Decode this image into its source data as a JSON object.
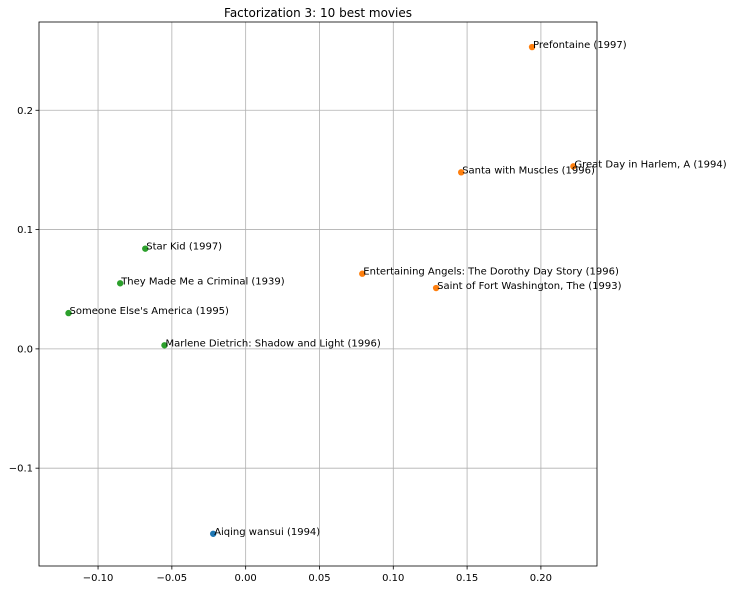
{
  "chart_data": {
    "type": "scatter",
    "title": "Factorization 3: 10 best movies",
    "xlabel": "",
    "ylabel": "",
    "xlim": [
      -0.14,
      0.238
    ],
    "ylim": [
      -0.182,
      0.274
    ],
    "grid": true,
    "x_ticks": [
      {
        "value": -0.1,
        "label": "−0.10"
      },
      {
        "value": -0.05,
        "label": "−0.05"
      },
      {
        "value": 0.0,
        "label": "0.00"
      },
      {
        "value": 0.05,
        "label": "0.05"
      },
      {
        "value": 0.1,
        "label": "0.10"
      },
      {
        "value": 0.15,
        "label": "0.15"
      },
      {
        "value": 0.2,
        "label": "0.20"
      }
    ],
    "y_ticks": [
      {
        "value": -0.1,
        "label": "−0.1"
      },
      {
        "value": 0.0,
        "label": "0.0"
      },
      {
        "value": 0.1,
        "label": "0.1"
      },
      {
        "value": 0.2,
        "label": "0.2"
      }
    ],
    "colors": {
      "blue": "#1f77b4",
      "orange": "#ff7f0e",
      "green": "#2ca02c"
    },
    "points": [
      {
        "label": "Prefontaine (1997)",
        "x": 0.194,
        "y": 0.253,
        "color": "orange"
      },
      {
        "label": "Great Day in Harlem, A (1994)",
        "x": 0.222,
        "y": 0.153,
        "color": "orange"
      },
      {
        "label": "Santa with Muscles (1996)",
        "x": 0.146,
        "y": 0.148,
        "color": "orange"
      },
      {
        "label": "Entertaining Angels: The Dorothy Day Story (1996)",
        "x": 0.079,
        "y": 0.063,
        "color": "orange"
      },
      {
        "label": "Saint of Fort Washington, The (1993)",
        "x": 0.129,
        "y": 0.051,
        "color": "orange"
      },
      {
        "label": "Star Kid (1997)",
        "x": -0.068,
        "y": 0.084,
        "color": "green"
      },
      {
        "label": "They Made Me a Criminal (1939)",
        "x": -0.085,
        "y": 0.055,
        "color": "green"
      },
      {
        "label": "Someone Else's America (1995)",
        "x": -0.12,
        "y": 0.03,
        "color": "green"
      },
      {
        "label": "Marlene Dietrich: Shadow and Light (1996)",
        "x": -0.055,
        "y": 0.003,
        "color": "green"
      },
      {
        "label": "Aiqing wansui (1994)",
        "x": -0.022,
        "y": -0.155,
        "color": "blue"
      }
    ]
  }
}
